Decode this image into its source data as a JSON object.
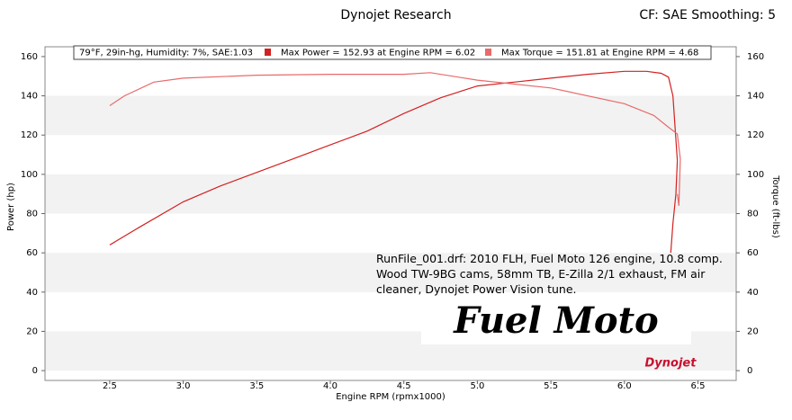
{
  "chart_data": {
    "type": "line",
    "title": "Dynojet Research",
    "subtitle": "CF: SAE Smoothing: 5",
    "conditions": "79°F, 29in-hg, Humidity: 7%, SAE:1.03",
    "xlabel": "Engine RPM (rpmx1000)",
    "ylabel": "Power (hp)",
    "y2label": "Torque (ft-lbs)",
    "annotation": [
      "RunFile_001.drf: 2010 FLH, Fuel Moto 126 engine, 10.8 comp.",
      "Wood TW-9BG cams, 58mm TB, E-Zilla 2/1 exhaust, FM air",
      "cleaner, Dynojet Power Vision tune."
    ],
    "logos": [
      "Fuel Moto",
      "Dynojet"
    ],
    "xlim": [
      2.06,
      6.76
    ],
    "xticks": [
      2.5,
      {
        "value": 3,
        "label": "3.0"
      },
      3.5,
      {
        "value": 4,
        "label": "4.0"
      },
      4.5,
      {
        "value": 5,
        "label": "5.0"
      },
      5.5,
      {
        "value": 6,
        "label": "6.0"
      },
      6.5
    ],
    "ylim": [
      -5,
      165
    ],
    "yticks": [
      0,
      20,
      40,
      60,
      80,
      100,
      120,
      140,
      160
    ],
    "y2lim": [
      -5,
      165
    ],
    "y2ticks": [
      0,
      20,
      40,
      60,
      80,
      100,
      120,
      140,
      160
    ],
    "grid": true,
    "series": [
      {
        "name": "Max Power = 152.93 at Engine RPM = 6.02",
        "color": "#d42020",
        "x": [
          2.5,
          2.7,
          3.0,
          3.25,
          3.5,
          3.75,
          4.0,
          4.25,
          4.5,
          4.75,
          5.0,
          5.25,
          5.5,
          5.75,
          6.0,
          6.15,
          6.25,
          6.3,
          6.33,
          6.36,
          6.35,
          6.33,
          6.315
        ],
        "values": [
          64,
          73,
          86,
          94,
          101,
          108,
          115,
          122,
          131,
          139,
          145,
          147,
          149,
          151,
          152.5,
          152.5,
          151.5,
          149.5,
          140,
          107,
          90,
          75,
          60
        ]
      },
      {
        "name": "Max Torque = 151.81 at Engine RPM = 4.68",
        "color": "#e86a6a",
        "axis": "y2",
        "x": [
          2.5,
          2.6,
          2.8,
          3.0,
          3.5,
          4.0,
          4.5,
          4.68,
          5.0,
          5.5,
          6.0,
          6.2,
          6.3,
          6.36,
          6.38,
          6.37,
          6.36
        ],
        "values": [
          135,
          140,
          147,
          149,
          150.5,
          151,
          151,
          151.8,
          148,
          144,
          136,
          130,
          124,
          120.6,
          107.8,
          84,
          90
        ]
      }
    ]
  }
}
